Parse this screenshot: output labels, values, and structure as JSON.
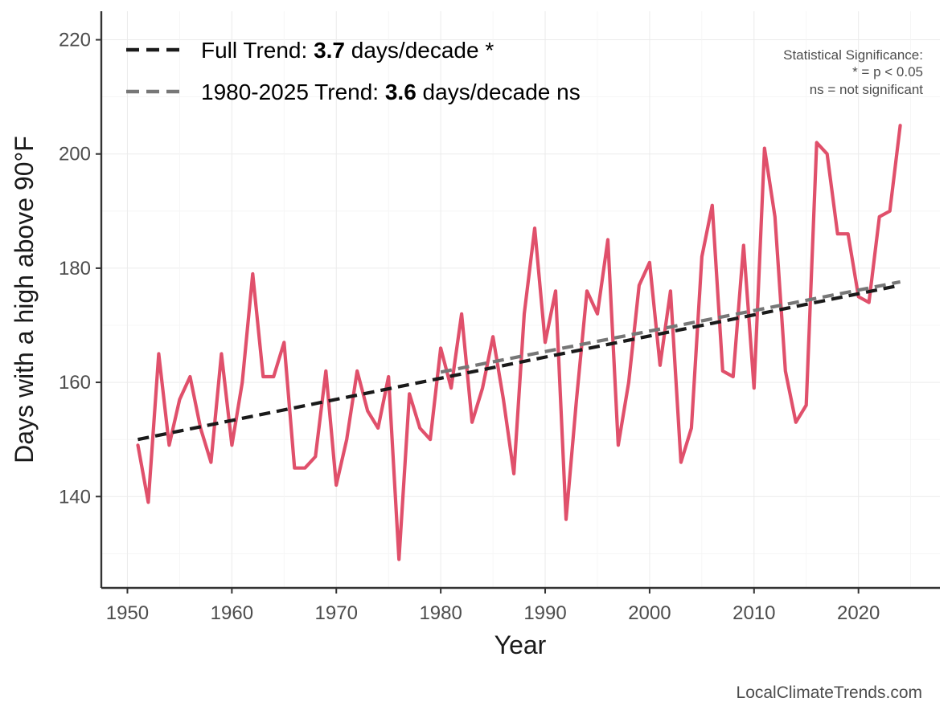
{
  "chart_data": {
    "type": "line",
    "xlabel": "Year",
    "ylabel": "Days with a high above 90°F",
    "xlim": [
      1947.5,
      2027.8
    ],
    "ylim": [
      124,
      225
    ],
    "x_ticks": [
      1950,
      1960,
      1970,
      1980,
      1990,
      2000,
      2010,
      2020
    ],
    "y_ticks": [
      140,
      160,
      180,
      200,
      220
    ],
    "grid": true,
    "series": [
      {
        "color": "#e0506b",
        "x": [
          1951,
          1952,
          1953,
          1954,
          1955,
          1956,
          1957,
          1958,
          1959,
          1960,
          1961,
          1962,
          1963,
          1964,
          1965,
          1966,
          1967,
          1968,
          1969,
          1970,
          1971,
          1972,
          1973,
          1974,
          1975,
          1976,
          1977,
          1978,
          1979,
          1980,
          1981,
          1982,
          1983,
          1984,
          1985,
          1986,
          1987,
          1988,
          1989,
          1990,
          1991,
          1992,
          1993,
          1994,
          1995,
          1996,
          1997,
          1998,
          1999,
          2000,
          2001,
          2002,
          2003,
          2004,
          2005,
          2006,
          2007,
          2008,
          2009,
          2010,
          2011,
          2012,
          2013,
          2014,
          2015,
          2016,
          2017,
          2018,
          2019,
          2020,
          2021,
          2022,
          2023,
          2024
        ],
        "values": [
          149,
          139,
          165,
          149,
          157,
          161,
          152,
          146,
          165,
          149,
          160,
          179,
          161,
          161,
          167,
          145,
          145,
          147,
          162,
          142,
          150,
          162,
          155,
          152,
          161,
          129,
          158,
          152,
          150,
          166,
          159,
          172,
          153,
          159,
          168,
          157,
          144,
          172,
          187,
          167,
          176,
          136,
          157,
          176,
          172,
          185,
          149,
          160,
          177,
          181,
          163,
          176,
          146,
          152,
          182,
          191,
          162,
          161,
          184,
          159,
          201,
          189,
          162,
          153,
          156,
          202,
          200,
          186,
          186,
          175,
          174,
          189,
          190,
          205
        ]
      }
    ],
    "trend_lines": [
      {
        "name": "Full Trend",
        "color": "#1a1a1a",
        "x": [
          1951,
          2024
        ],
        "values": [
          150.0,
          177.0
        ]
      },
      {
        "name": "1980-2025 Trend",
        "color": "#777777",
        "x": [
          1980,
          2024
        ],
        "values": [
          161.8,
          177.6
        ]
      }
    ],
    "legend": {
      "placement": "top-left",
      "entries": [
        {
          "prefix": "Full Trend: ",
          "value": "3.7",
          "suffix": " days/decade *",
          "color": "#1a1a1a"
        },
        {
          "prefix": "1980-2025 Trend: ",
          "value": "3.6",
          "suffix": " days/decade ns",
          "color": "#777777"
        }
      ]
    },
    "annotations": {
      "significance_title": "Statistical Significance:",
      "significance_line1": "* = p < 0.05",
      "significance_line2": "ns = not significant",
      "source": "LocalClimateTrends.com"
    }
  }
}
